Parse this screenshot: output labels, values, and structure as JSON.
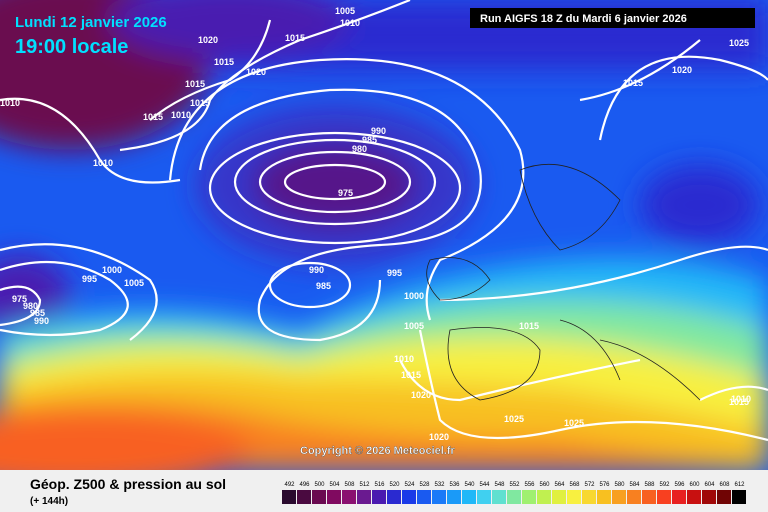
{
  "header": {
    "title": "Lundi 12 janvier 2026",
    "time": "19:00 locale",
    "run": "Run AIGFS 18 Z du Mardi 6 janvier 2026"
  },
  "isobar_labels": [
    "1005",
    "1010",
    "1020",
    "1015",
    "1015",
    "1020",
    "1015",
    "1015",
    "1010",
    "1015",
    "1010",
    "1010",
    "990",
    "985",
    "980",
    "975",
    "990",
    "985",
    "995",
    "1000",
    "995",
    "1005",
    "975",
    "980",
    "985",
    "990",
    "1000",
    "1005",
    "1015",
    "1010",
    "1015",
    "1020",
    "1025",
    "1025",
    "1020",
    "1025",
    "1015",
    "1020",
    "1015",
    "1010"
  ],
  "copyright": "Copyright © 2026 Meteociel.fr",
  "footer": {
    "title": "Géop. Z500 & pression au sol",
    "lead": "(+ 144h)"
  },
  "scale": {
    "values": [
      492,
      496,
      500,
      504,
      508,
      512,
      516,
      520,
      524,
      528,
      532,
      536,
      540,
      544,
      548,
      552,
      556,
      560,
      564,
      568,
      572,
      576,
      580,
      584,
      588,
      592,
      596,
      600,
      604,
      608,
      612
    ],
    "colors": [
      "#2a0a2e",
      "#4a0a40",
      "#6a0a50",
      "#800a60",
      "#8a1070",
      "#6a1a90",
      "#4a1ab0",
      "#2a2ad0",
      "#1a3ae8",
      "#1a5af0",
      "#1a7af8",
      "#1a9af8",
      "#20b8f8",
      "#40d0f0",
      "#60e0d0",
      "#80e8a0",
      "#a0f070",
      "#c0f050",
      "#e0f040",
      "#f8f040",
      "#f8d830",
      "#f8c020",
      "#f8a020",
      "#f88020",
      "#f86020",
      "#f84020",
      "#e82020",
      "#c81010",
      "#a00808",
      "#700404",
      "#000000"
    ]
  }
}
